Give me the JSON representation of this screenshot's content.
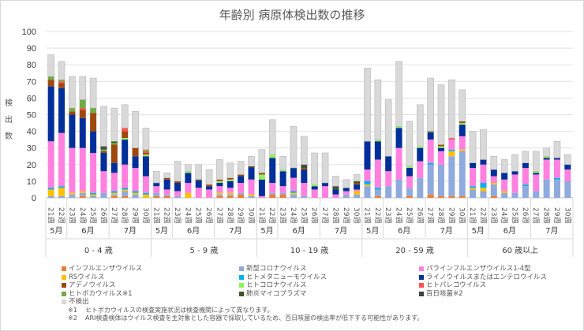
{
  "chart_data": {
    "type": "bar",
    "stacked": true,
    "title": "年齢別 病原体検出数の推移",
    "xlabel": "",
    "ylabel": "検出数",
    "ylim": [
      0,
      100
    ],
    "yticks": [
      0,
      10,
      20,
      30,
      40,
      50,
      60,
      70,
      80,
      90,
      100
    ],
    "grid": true,
    "legend_position": "bottom",
    "weeks": [
      "21週",
      "22週",
      "23週",
      "24週",
      "25週",
      "26週",
      "27週",
      "28週",
      "29週",
      "30週"
    ],
    "month_groups": [
      {
        "label": "5月",
        "weeks": 2
      },
      {
        "label": "6月",
        "weeks": 4
      },
      {
        "label": "7月",
        "weeks": 4
      }
    ],
    "age_groups": [
      "0 - 4 歳",
      "5 - 9 歳",
      "10 - 19 歳",
      "20 - 59 歳",
      "60 歳以上"
    ],
    "series": [
      {
        "key": "flu",
        "name": "インフルエンザウイルス",
        "color": "#ed7d31",
        "values": [
          [
            0,
            0,
            0,
            1,
            0,
            0,
            1,
            1,
            0,
            0
          ],
          [
            1,
            1,
            0,
            0,
            0,
            0,
            1,
            1,
            2,
            0
          ],
          [
            0,
            2,
            2,
            0,
            0,
            0,
            0,
            0,
            0,
            0
          ],
          [
            0,
            1,
            0,
            0,
            1,
            0,
            2,
            1,
            1,
            1
          ],
          [
            0,
            0,
            1,
            0,
            0,
            0,
            0,
            0,
            0,
            0
          ]
        ]
      },
      {
        "key": "covid",
        "name": "新型コロナウイルス",
        "color": "#8faadc",
        "values": [
          [
            1,
            1,
            2,
            2,
            1,
            3,
            1,
            3,
            2,
            0
          ],
          [
            2,
            1,
            1,
            0,
            0,
            0,
            1,
            1,
            1,
            1
          ],
          [
            0,
            1,
            1,
            2,
            1,
            0,
            0,
            0,
            2,
            2
          ],
          [
            7,
            4,
            7,
            11,
            5,
            12,
            18,
            19,
            24,
            27
          ],
          [
            5,
            4,
            7,
            3,
            3,
            7,
            4,
            11,
            11,
            10
          ]
        ]
      },
      {
        "key": "rs",
        "name": "RSウイルス",
        "color": "#ffc000",
        "values": [
          [
            4,
            5,
            1,
            1,
            1,
            0,
            1,
            1,
            1,
            2
          ],
          [
            0,
            0,
            0,
            3,
            0,
            0,
            1,
            1,
            0,
            1
          ],
          [
            0,
            0,
            0,
            1,
            0,
            0,
            0,
            0,
            0,
            2
          ],
          [
            1,
            0,
            0,
            0,
            0,
            0,
            0,
            0,
            3,
            1
          ],
          [
            1,
            2,
            1,
            1,
            0,
            0,
            0,
            0,
            0,
            0
          ]
        ]
      },
      {
        "key": "hmpv",
        "name": "ヒトメタニューモウイルス",
        "color": "#00b0f0",
        "values": [
          [
            1,
            1,
            0,
            0,
            1,
            0,
            1,
            1,
            1,
            1
          ],
          [
            0,
            0,
            0,
            0,
            0,
            0,
            0,
            0,
            0,
            0
          ],
          [
            0,
            0,
            0,
            1,
            0,
            0,
            0,
            0,
            0,
            0
          ],
          [
            2,
            1,
            0,
            0,
            0,
            0,
            1,
            0,
            1,
            0
          ],
          [
            1,
            3,
            0,
            0,
            0,
            1,
            0,
            0,
            1,
            0
          ]
        ]
      },
      {
        "key": "para",
        "name": "パラインフルエンザウイルス1-4型",
        "color": "#ff80df",
        "values": [
          [
            28,
            32,
            27,
            26,
            24,
            13,
            11,
            14,
            14,
            10
          ],
          [
            4,
            3,
            3,
            6,
            6,
            5,
            4,
            3,
            6,
            9
          ],
          [
            1,
            6,
            4,
            8,
            8,
            5,
            7,
            2,
            2,
            1
          ],
          [
            7,
            17,
            9,
            19,
            7,
            10,
            14,
            8,
            6,
            8
          ],
          [
            11,
            11,
            4,
            7,
            11,
            10,
            10,
            12,
            11,
            7
          ]
        ]
      },
      {
        "key": "rhino",
        "name": "ライノウイルスまたはエンテロウイルス",
        "color": "#002f9a",
        "values": [
          [
            33,
            27,
            20,
            18,
            13,
            11,
            6,
            15,
            7,
            12
          ],
          [
            2,
            6,
            5,
            6,
            4,
            2,
            2,
            4,
            4,
            7
          ],
          [
            10,
            15,
            9,
            6,
            8,
            2,
            2,
            3,
            2,
            3
          ],
          [
            17,
            11,
            9,
            12,
            5,
            8,
            4,
            2,
            0,
            7
          ],
          [
            3,
            3,
            4,
            4,
            2,
            3,
            1,
            1,
            1,
            3
          ]
        ]
      },
      {
        "key": "hcov",
        "name": "ヒトコロナウイルス",
        "color": "#92f05a",
        "values": [
          [
            0,
            0,
            0,
            0,
            0,
            0,
            0,
            1,
            0,
            1
          ],
          [
            0,
            0,
            0,
            1,
            0,
            0,
            1,
            1,
            0,
            0
          ],
          [
            3,
            2,
            1,
            0,
            0,
            1,
            0,
            0,
            0,
            0
          ],
          [
            0,
            1,
            0,
            1,
            1,
            1,
            0,
            1,
            0,
            1
          ],
          [
            0,
            0,
            0,
            0,
            0,
            0,
            1,
            1,
            0,
            0
          ]
        ]
      },
      {
        "key": "adeno",
        "name": "アデノウイルス",
        "color": "#9e480e",
        "values": [
          [
            4,
            3,
            2,
            5,
            11,
            1,
            11,
            4,
            5,
            1
          ],
          [
            0,
            1,
            1,
            0,
            0,
            1,
            1,
            1,
            1,
            0
          ],
          [
            1,
            0,
            0,
            0,
            1,
            0,
            0,
            0,
            0,
            1
          ],
          [
            0,
            0,
            0,
            0,
            0,
            0,
            0,
            1,
            0,
            1
          ],
          [
            0,
            0,
            0,
            0,
            0,
            0,
            0,
            0,
            0,
            0
          ]
        ]
      },
      {
        "key": "hpev",
        "name": "ヒトパレコウイルス",
        "color": "#ff5050",
        "values": [
          [
            0,
            1,
            0,
            1,
            0,
            0,
            0,
            2,
            0,
            1
          ],
          [
            0,
            0,
            0,
            0,
            0,
            0,
            0,
            0,
            0,
            0
          ],
          [
            0,
            0,
            0,
            0,
            0,
            0,
            0,
            0,
            0,
            0
          ],
          [
            0,
            0,
            0,
            0,
            0,
            0,
            0,
            0,
            1,
            0
          ],
          [
            0,
            0,
            0,
            0,
            0,
            0,
            0,
            0,
            0,
            0
          ]
        ]
      },
      {
        "key": "boca",
        "name": "ヒトボカウイルス※1",
        "color": "#70ad47",
        "values": [
          [
            2,
            1,
            2,
            5,
            3,
            1,
            1,
            0,
            0,
            1
          ],
          [
            0,
            0,
            0,
            0,
            0,
            0,
            0,
            0,
            0,
            0
          ],
          [
            0,
            0,
            0,
            0,
            0,
            0,
            0,
            0,
            0,
            0
          ],
          [
            0,
            0,
            0,
            0,
            0,
            0,
            0,
            0,
            0,
            0
          ],
          [
            0,
            0,
            0,
            0,
            0,
            0,
            0,
            0,
            0,
            0
          ]
        ]
      },
      {
        "key": "mycoplasma",
        "name": "肺炎マイコプラズマ",
        "color": "#375623",
        "values": [
          [
            0,
            0,
            0,
            0,
            0,
            1,
            1,
            0,
            0,
            0
          ],
          [
            0,
            0,
            0,
            0,
            0,
            0,
            0,
            0,
            0,
            0
          ],
          [
            0,
            0,
            0,
            0,
            1,
            0,
            0,
            1,
            0,
            1
          ],
          [
            0,
            0,
            0,
            0,
            0,
            0,
            1,
            0,
            0,
            0
          ],
          [
            0,
            0,
            0,
            0,
            0,
            0,
            0,
            0,
            0,
            0
          ]
        ]
      },
      {
        "key": "pertussis",
        "name": "百日咳菌※2",
        "color": "#404040",
        "values": [
          [
            0,
            0,
            0,
            0,
            0,
            1,
            0,
            0,
            0,
            0
          ],
          [
            0,
            0,
            0,
            0,
            1,
            0,
            0,
            0,
            0,
            1
          ],
          [
            0,
            0,
            0,
            0,
            1,
            0,
            0,
            1,
            0,
            0
          ],
          [
            0,
            0,
            0,
            0,
            0,
            0,
            0,
            0,
            0,
            0
          ],
          [
            0,
            0,
            0,
            0,
            0,
            0,
            0,
            0,
            0,
            0
          ]
        ]
      },
      {
        "key": "nd",
        "name": "不検出",
        "color": "#d9d9d9",
        "values": [
          [
            13,
            11,
            19,
            14,
            18,
            24,
            20,
            14,
            22,
            13
          ],
          [
            7,
            3,
            12,
            4,
            9,
            9,
            12,
            9,
            8,
            6
          ],
          [
            14,
            21,
            8,
            25,
            17,
            19,
            18,
            6,
            5,
            4
          ],
          [
            44,
            36,
            34,
            39,
            27,
            25,
            32,
            36,
            35,
            19
          ],
          [
            19,
            18,
            8,
            8,
            10,
            7,
            12,
            5,
            10,
            6
          ]
        ]
      }
    ]
  },
  "legend_columns": [
    [
      "flu",
      "rs",
      "adeno",
      "boca",
      "nd"
    ],
    [
      "covid",
      "hmpv",
      "hcov",
      "mycoplasma"
    ],
    [
      "para",
      "rhino",
      "hpev",
      "pertussis"
    ]
  ],
  "notes": [
    {
      "key": "※1",
      "text": "ヒトボカウイルスの検査実施状況は検査機関によって異なります。"
    },
    {
      "key": "※2",
      "text": "ARI検査検体はウイルス検査を主対象とした容器で採取しているため、百日咳菌の検出率が低下する可能性があります。"
    }
  ]
}
